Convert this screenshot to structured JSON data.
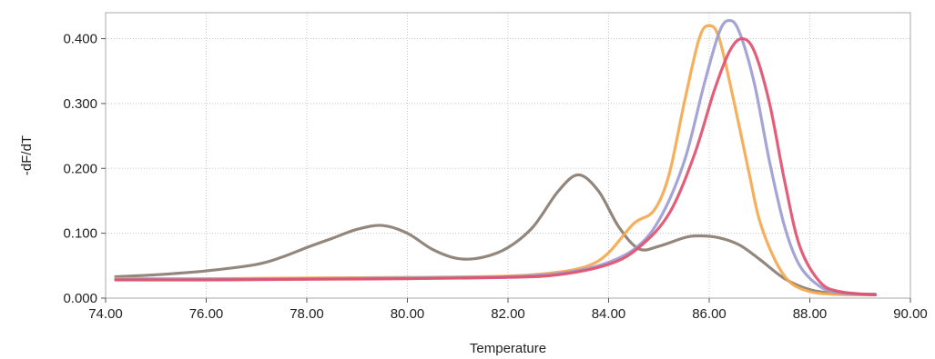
{
  "chart_data": {
    "type": "line",
    "title": "",
    "xlabel": "Temperature",
    "ylabel": "-dF/dT",
    "xlim": [
      74.0,
      90.0
    ],
    "ylim": [
      0.0,
      0.44
    ],
    "grid": true,
    "legend": "none",
    "x_ticks": [
      "74.00",
      "76.00",
      "78.00",
      "80.00",
      "82.00",
      "84.00",
      "86.00",
      "88.00",
      "90.00"
    ],
    "y_ticks": [
      "0.000",
      "0.100",
      "0.200",
      "0.300",
      "0.400"
    ],
    "series": [
      {
        "color": "#8a7d72",
        "x": [
          74.2,
          75.0,
          76.0,
          77.0,
          77.5,
          78.0,
          78.5,
          79.0,
          79.5,
          80.0,
          80.5,
          81.0,
          81.5,
          82.0,
          82.5,
          83.0,
          83.4,
          83.8,
          84.2,
          84.6,
          85.0,
          85.5,
          85.8,
          86.2,
          86.6,
          87.0,
          87.5,
          88.0,
          88.5,
          89.0,
          89.3
        ],
        "y": [
          0.033,
          0.036,
          0.042,
          0.052,
          0.063,
          0.078,
          0.092,
          0.106,
          0.112,
          0.1,
          0.075,
          0.061,
          0.063,
          0.078,
          0.11,
          0.165,
          0.19,
          0.165,
          0.11,
          0.076,
          0.08,
          0.093,
          0.096,
          0.093,
          0.082,
          0.06,
          0.03,
          0.013,
          0.007,
          0.006,
          0.006
        ]
      },
      {
        "color": "#f5a84e",
        "x": [
          74.2,
          76.0,
          78.0,
          80.0,
          82.0,
          83.0,
          83.6,
          84.0,
          84.5,
          84.9,
          85.2,
          85.5,
          85.8,
          86.0,
          86.2,
          86.5,
          86.8,
          87.0,
          87.3,
          87.6,
          88.0,
          88.5,
          89.3
        ],
        "y": [
          0.03,
          0.03,
          0.031,
          0.032,
          0.034,
          0.04,
          0.05,
          0.07,
          0.115,
          0.135,
          0.19,
          0.3,
          0.4,
          0.42,
          0.4,
          0.3,
          0.19,
          0.12,
          0.06,
          0.025,
          0.01,
          0.006,
          0.005
        ]
      },
      {
        "color": "#9c9cd4",
        "x": [
          74.2,
          76.0,
          78.0,
          80.0,
          82.0,
          83.0,
          83.8,
          84.5,
          85.0,
          85.5,
          85.9,
          86.2,
          86.4,
          86.6,
          86.9,
          87.2,
          87.5,
          87.8,
          88.2,
          88.6,
          89.3
        ],
        "y": [
          0.029,
          0.029,
          0.03,
          0.031,
          0.033,
          0.038,
          0.05,
          0.075,
          0.12,
          0.21,
          0.33,
          0.41,
          0.428,
          0.41,
          0.33,
          0.21,
          0.11,
          0.05,
          0.018,
          0.008,
          0.005
        ]
      },
      {
        "color": "#e0506e",
        "x": [
          74.2,
          76.0,
          78.0,
          80.0,
          82.0,
          83.0,
          84.0,
          84.6,
          85.2,
          85.7,
          86.1,
          86.4,
          86.65,
          86.9,
          87.2,
          87.5,
          87.8,
          88.2,
          88.6,
          89.3
        ],
        "y": [
          0.028,
          0.028,
          0.029,
          0.03,
          0.032,
          0.036,
          0.052,
          0.078,
          0.13,
          0.22,
          0.32,
          0.38,
          0.4,
          0.38,
          0.3,
          0.18,
          0.08,
          0.025,
          0.01,
          0.005
        ]
      }
    ]
  }
}
